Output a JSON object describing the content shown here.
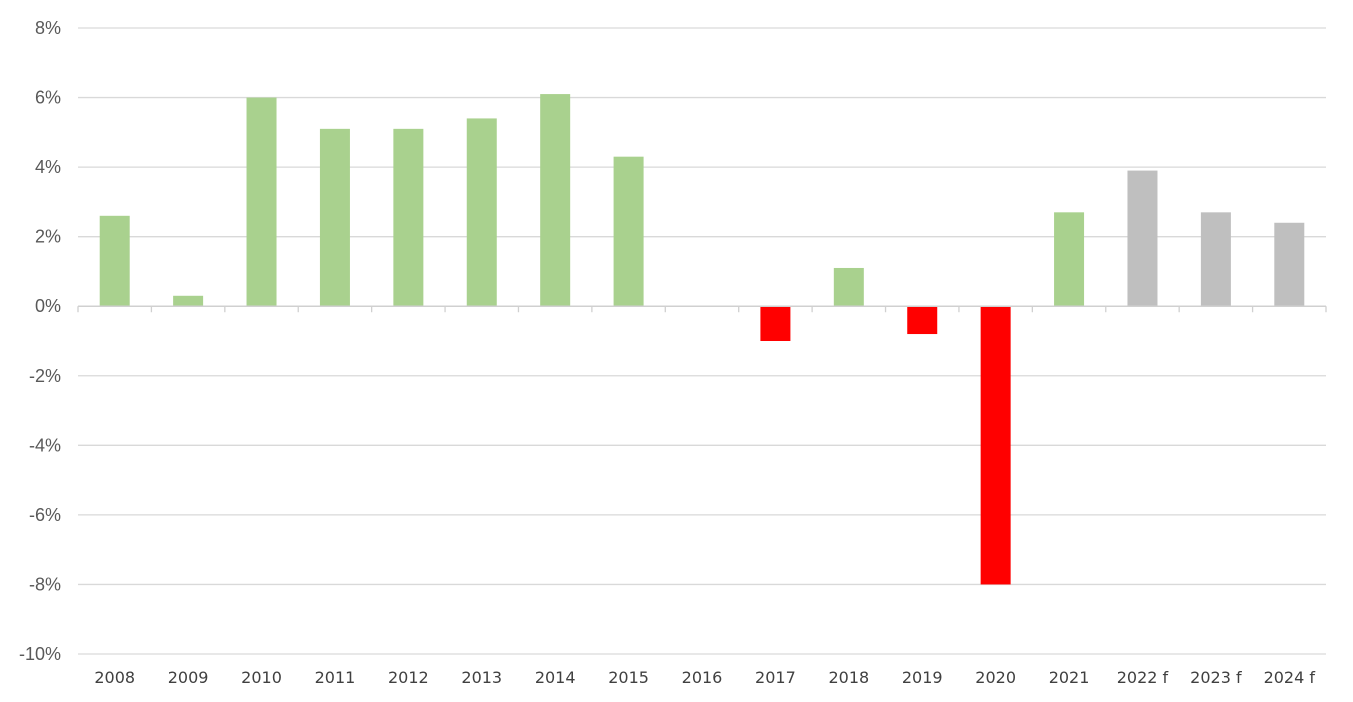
{
  "chart_data": {
    "type": "bar",
    "title": "",
    "xlabel": "",
    "ylabel": "",
    "categories": [
      "2008",
      "2009",
      "2010",
      "2011",
      "2012",
      "2013",
      "2014",
      "2015",
      "2016",
      "2017",
      "2018",
      "2019",
      "2020",
      "2021",
      "2022 f",
      "2023 f",
      "2024 f"
    ],
    "values": [
      2.6,
      0.3,
      6.0,
      5.1,
      5.1,
      5.4,
      6.1,
      4.3,
      0.0,
      -1.0,
      1.1,
      -0.8,
      -8.0,
      2.7,
      3.9,
      2.7,
      2.4
    ],
    "bar_colors": [
      "#a9d18e",
      "#a9d18e",
      "#a9d18e",
      "#a9d18e",
      "#a9d18e",
      "#a9d18e",
      "#a9d18e",
      "#a9d18e",
      "#a9d18e",
      "#ff0000",
      "#a9d18e",
      "#ff0000",
      "#ff0000",
      "#a9d18e",
      "#bfbfbf",
      "#bfbfbf",
      "#bfbfbf"
    ],
    "ylim": [
      -10,
      8
    ],
    "yticks": [
      8,
      6,
      4,
      2,
      0,
      -2,
      -4,
      -6,
      -8,
      -10
    ],
    "ytick_labels": [
      "8%",
      "6%",
      "4%",
      "2%",
      "0%",
      "-2%",
      "-4%",
      "-6%",
      "-8%",
      "-10%"
    ],
    "grid": true,
    "legend": "none",
    "colors": {
      "growth": "#a9d18e",
      "decline": "#ff0000",
      "forecast": "#bfbfbf",
      "grid": "#d9d9d9",
      "tick_text": "#595959"
    }
  }
}
